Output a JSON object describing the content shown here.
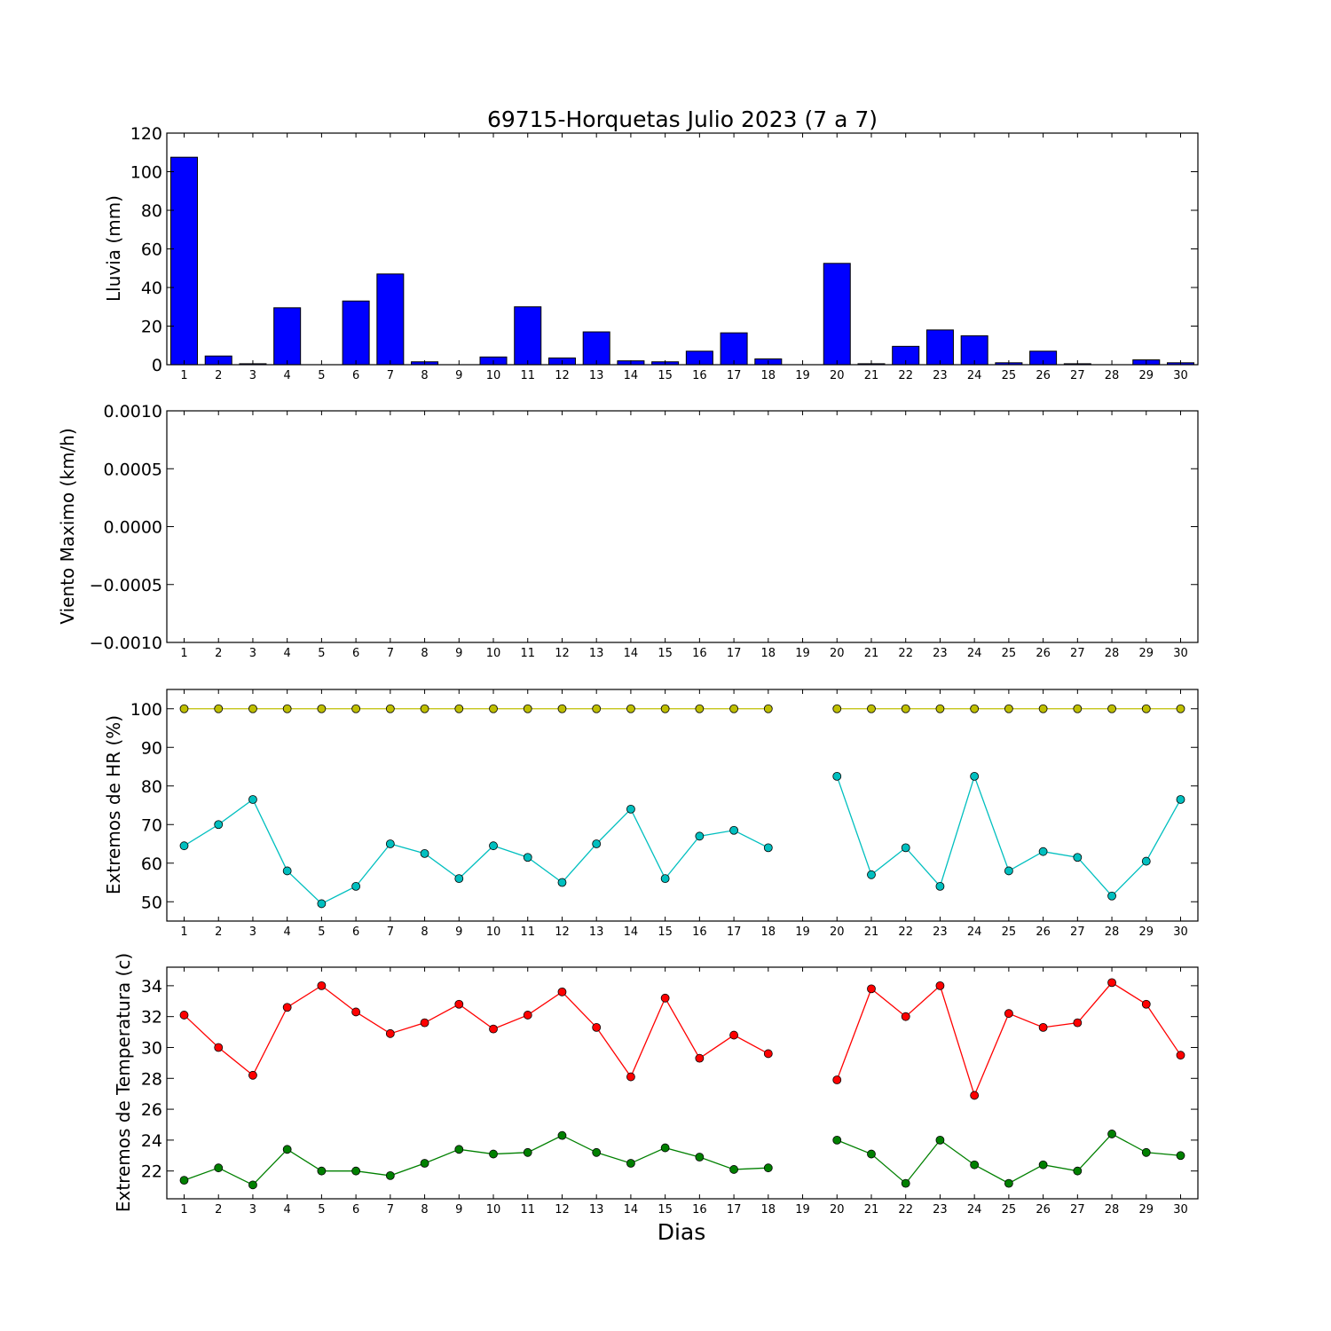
{
  "chart_data": [
    {
      "type": "bar",
      "title": "69715-Horquetas Julio 2023  (7 a 7)",
      "xlabel": "",
      "ylabel": "Lluvia (mm)",
      "categories": [
        "1",
        "2",
        "3",
        "4",
        "5",
        "6",
        "7",
        "8",
        "9",
        "10",
        "11",
        "12",
        "13",
        "14",
        "15",
        "16",
        "17",
        "18",
        "19",
        "20",
        "21",
        "22",
        "23",
        "24",
        "25",
        "26",
        "27",
        "28",
        "29",
        "30"
      ],
      "values": [
        107.5,
        4.5,
        0.5,
        29.5,
        0,
        33,
        47,
        1.5,
        0,
        4,
        30,
        3.5,
        17,
        2,
        1.5,
        7,
        16.5,
        3,
        0,
        52.5,
        0.5,
        9.5,
        18,
        15,
        1,
        7,
        0.5,
        0,
        2.5,
        1
      ],
      "ylim": [
        0,
        120
      ],
      "yticks": [
        0,
        20,
        40,
        60,
        80,
        100,
        120
      ],
      "colors": {
        "bar": "#0000ff"
      },
      "grid": false
    },
    {
      "type": "line",
      "xlabel": "",
      "ylabel": "Viento Maximo (km/h)",
      "categories": [
        "1",
        "2",
        "3",
        "4",
        "5",
        "6",
        "7",
        "8",
        "9",
        "10",
        "11",
        "12",
        "13",
        "14",
        "15",
        "16",
        "17",
        "18",
        "19",
        "20",
        "21",
        "22",
        "23",
        "24",
        "25",
        "26",
        "27",
        "28",
        "29",
        "30"
      ],
      "ylim": [
        -0.001,
        0.001
      ],
      "ytick_labels": [
        "−0.0010",
        "−0.0005",
        "0.0000",
        "0.0005",
        "0.0010"
      ],
      "ytick_values": [
        -0.001,
        -0.0005,
        0,
        0.0005,
        0.001
      ],
      "series": [],
      "grid": false
    },
    {
      "type": "line",
      "xlabel": "",
      "ylabel": "Extremos de HR (%)",
      "categories": [
        "1",
        "2",
        "3",
        "4",
        "5",
        "6",
        "7",
        "8",
        "9",
        "10",
        "11",
        "12",
        "13",
        "14",
        "15",
        "16",
        "17",
        "18",
        "19",
        "20",
        "21",
        "22",
        "23",
        "24",
        "25",
        "26",
        "27",
        "28",
        "29",
        "30"
      ],
      "ylim": [
        45,
        105
      ],
      "yticks": [
        50,
        60,
        70,
        80,
        90,
        100
      ],
      "series": [
        {
          "color": "#bfbf00",
          "values": [
            100,
            100,
            100,
            100,
            100,
            100,
            100,
            100,
            100,
            100,
            100,
            100,
            100,
            100,
            100,
            100,
            100,
            100,
            null,
            100,
            100,
            100,
            100,
            100,
            100,
            100,
            100,
            100,
            100,
            100
          ]
        },
        {
          "color": "#00bfbf",
          "values": [
            64.5,
            70,
            76.5,
            58,
            49.5,
            54,
            65,
            62.5,
            56,
            64.5,
            61.5,
            55,
            65,
            74,
            56,
            67,
            68.5,
            64,
            null,
            82.5,
            57,
            64,
            54,
            82.5,
            58,
            63,
            61.5,
            51.5,
            60.5,
            76.5
          ]
        }
      ],
      "grid": false
    },
    {
      "type": "line",
      "xlabel": "Dias",
      "ylabel": "Extremos de Temperatura (c)",
      "categories": [
        "1",
        "2",
        "3",
        "4",
        "5",
        "6",
        "7",
        "8",
        "9",
        "10",
        "11",
        "12",
        "13",
        "14",
        "15",
        "16",
        "17",
        "18",
        "19",
        "20",
        "21",
        "22",
        "23",
        "24",
        "25",
        "26",
        "27",
        "28",
        "29",
        "30"
      ],
      "ylim": [
        20.2,
        35.2
      ],
      "yticks": [
        22,
        24,
        26,
        28,
        30,
        32,
        34
      ],
      "series": [
        {
          "color": "#ff0000",
          "values": [
            32.1,
            30,
            28.2,
            32.6,
            34,
            32.3,
            30.9,
            31.6,
            32.8,
            31.2,
            32.1,
            33.6,
            31.3,
            28.1,
            33.2,
            29.3,
            30.8,
            29.6,
            null,
            27.9,
            33.8,
            32,
            34,
            26.9,
            32.2,
            31.3,
            31.6,
            34.2,
            32.8,
            29.5
          ]
        },
        {
          "color": "#008000",
          "values": [
            21.4,
            22.2,
            21.1,
            23.4,
            22,
            22,
            21.7,
            22.5,
            23.4,
            23.1,
            23.2,
            24.3,
            23.2,
            22.5,
            23.5,
            22.9,
            22.1,
            22.2,
            null,
            24,
            23.1,
            21.2,
            24,
            22.4,
            21.2,
            22.4,
            22,
            24.4,
            23.2,
            23
          ]
        }
      ],
      "grid": false
    }
  ]
}
